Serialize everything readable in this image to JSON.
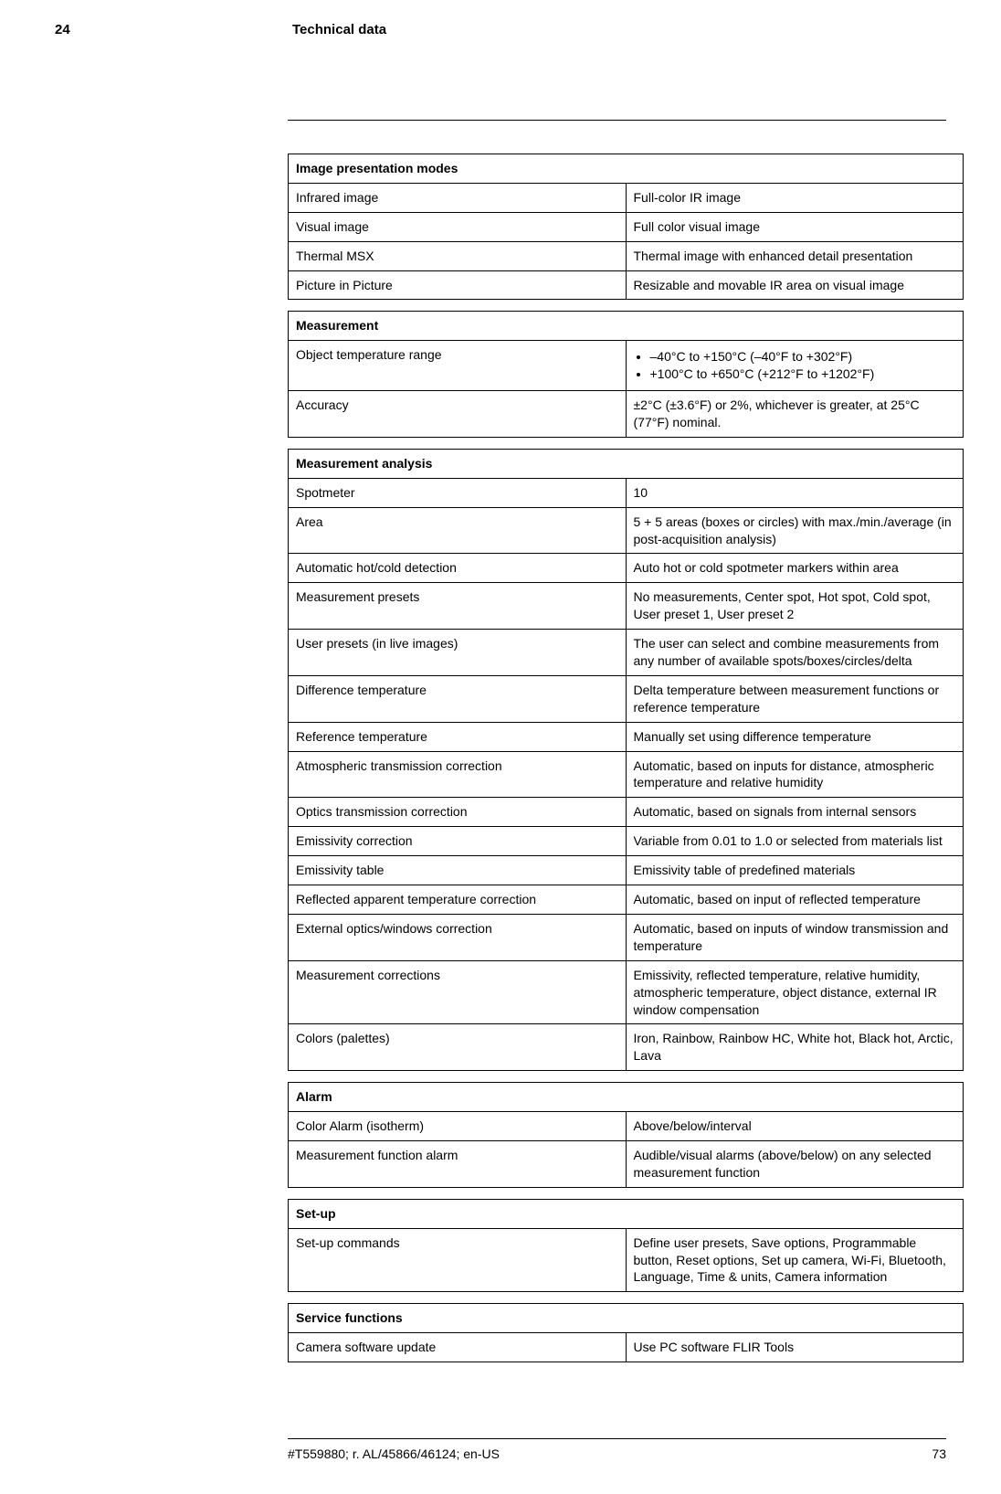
{
  "header": {
    "section_number": "24",
    "title": "Technical data"
  },
  "footer": {
    "docref": "#T559880; r. AL/45866/46124; en-US",
    "page_number": "73"
  },
  "tables": [
    {
      "heading": "Image presentation modes",
      "rows": [
        {
          "left": "Infrared image",
          "right": "Full-color IR image"
        },
        {
          "left": "Visual image",
          "right": "Full color visual image"
        },
        {
          "left": "Thermal MSX",
          "right": "Thermal image with enhanced detail presentation"
        },
        {
          "left": "Picture in Picture",
          "right": "Resizable and movable IR area on visual image"
        }
      ]
    },
    {
      "heading": "Measurement",
      "rows": [
        {
          "left": "Object temperature range",
          "right_list": [
            "–40°C to +150°C (–40°F to +302°F)",
            "+100°C to +650°C (+212°F to +1202°F)"
          ]
        },
        {
          "left": "Accuracy",
          "right": "±2°C (±3.6°F) or 2%, whichever is greater, at 25°C (77°F) nominal."
        }
      ]
    },
    {
      "heading": "Measurement analysis",
      "rows": [
        {
          "left": "Spotmeter",
          "right": "10"
        },
        {
          "left": "Area",
          "right": "5 + 5 areas (boxes or circles) with max./min./average (in post-acquisition analysis)"
        },
        {
          "left": "Automatic hot/cold detection",
          "right": "Auto hot or cold spotmeter markers within area"
        },
        {
          "left": "Measurement presets",
          "right": "No measurements, Center spot, Hot spot, Cold spot, User preset 1, User preset 2"
        },
        {
          "left": "User presets (in live images)",
          "right": "The user can select and combine measurements from any number of available spots/boxes/circles/delta"
        },
        {
          "left": "Difference temperature",
          "right": "Delta temperature between measurement functions or reference temperature"
        },
        {
          "left": "Reference temperature",
          "right": "Manually set using difference temperature"
        },
        {
          "left": "Atmospheric transmission correction",
          "right": "Automatic, based on inputs for distance, atmospheric temperature and relative humidity"
        },
        {
          "left": "Optics transmission correction",
          "right": "Automatic, based on signals from internal sensors"
        },
        {
          "left": "Emissivity correction",
          "right": "Variable from 0.01 to 1.0 or selected from materials list"
        },
        {
          "left": "Emissivity table",
          "right": "Emissivity table of predefined materials"
        },
        {
          "left": "Reflected apparent temperature correction",
          "right": "Automatic, based on input of reflected temperature"
        },
        {
          "left": "External optics/windows correction",
          "right": "Automatic, based on inputs of window transmission and temperature"
        },
        {
          "left": "Measurement corrections",
          "right": "Emissivity, reflected temperature, relative humidity, atmospheric temperature, object distance, external IR window compensation"
        },
        {
          "left": "Colors (palettes)",
          "right": "Iron, Rainbow, Rainbow HC, White hot, Black hot, Arctic, Lava"
        }
      ]
    },
    {
      "heading": "Alarm",
      "rows": [
        {
          "left": "Color Alarm (isotherm)",
          "right": "Above/below/interval"
        },
        {
          "left": "Measurement function alarm",
          "right": "Audible/visual alarms (above/below) on any selected measurement function"
        }
      ]
    },
    {
      "heading": "Set-up",
      "rows": [
        {
          "left": "Set-up commands",
          "right": "Define user presets, Save options, Programmable button, Reset options, Set up camera, Wi-Fi, Bluetooth, Language, Time & units, Camera information"
        }
      ]
    },
    {
      "heading": "Service functions",
      "rows": [
        {
          "left": "Camera software update",
          "right": "Use PC software FLIR Tools"
        }
      ]
    }
  ]
}
